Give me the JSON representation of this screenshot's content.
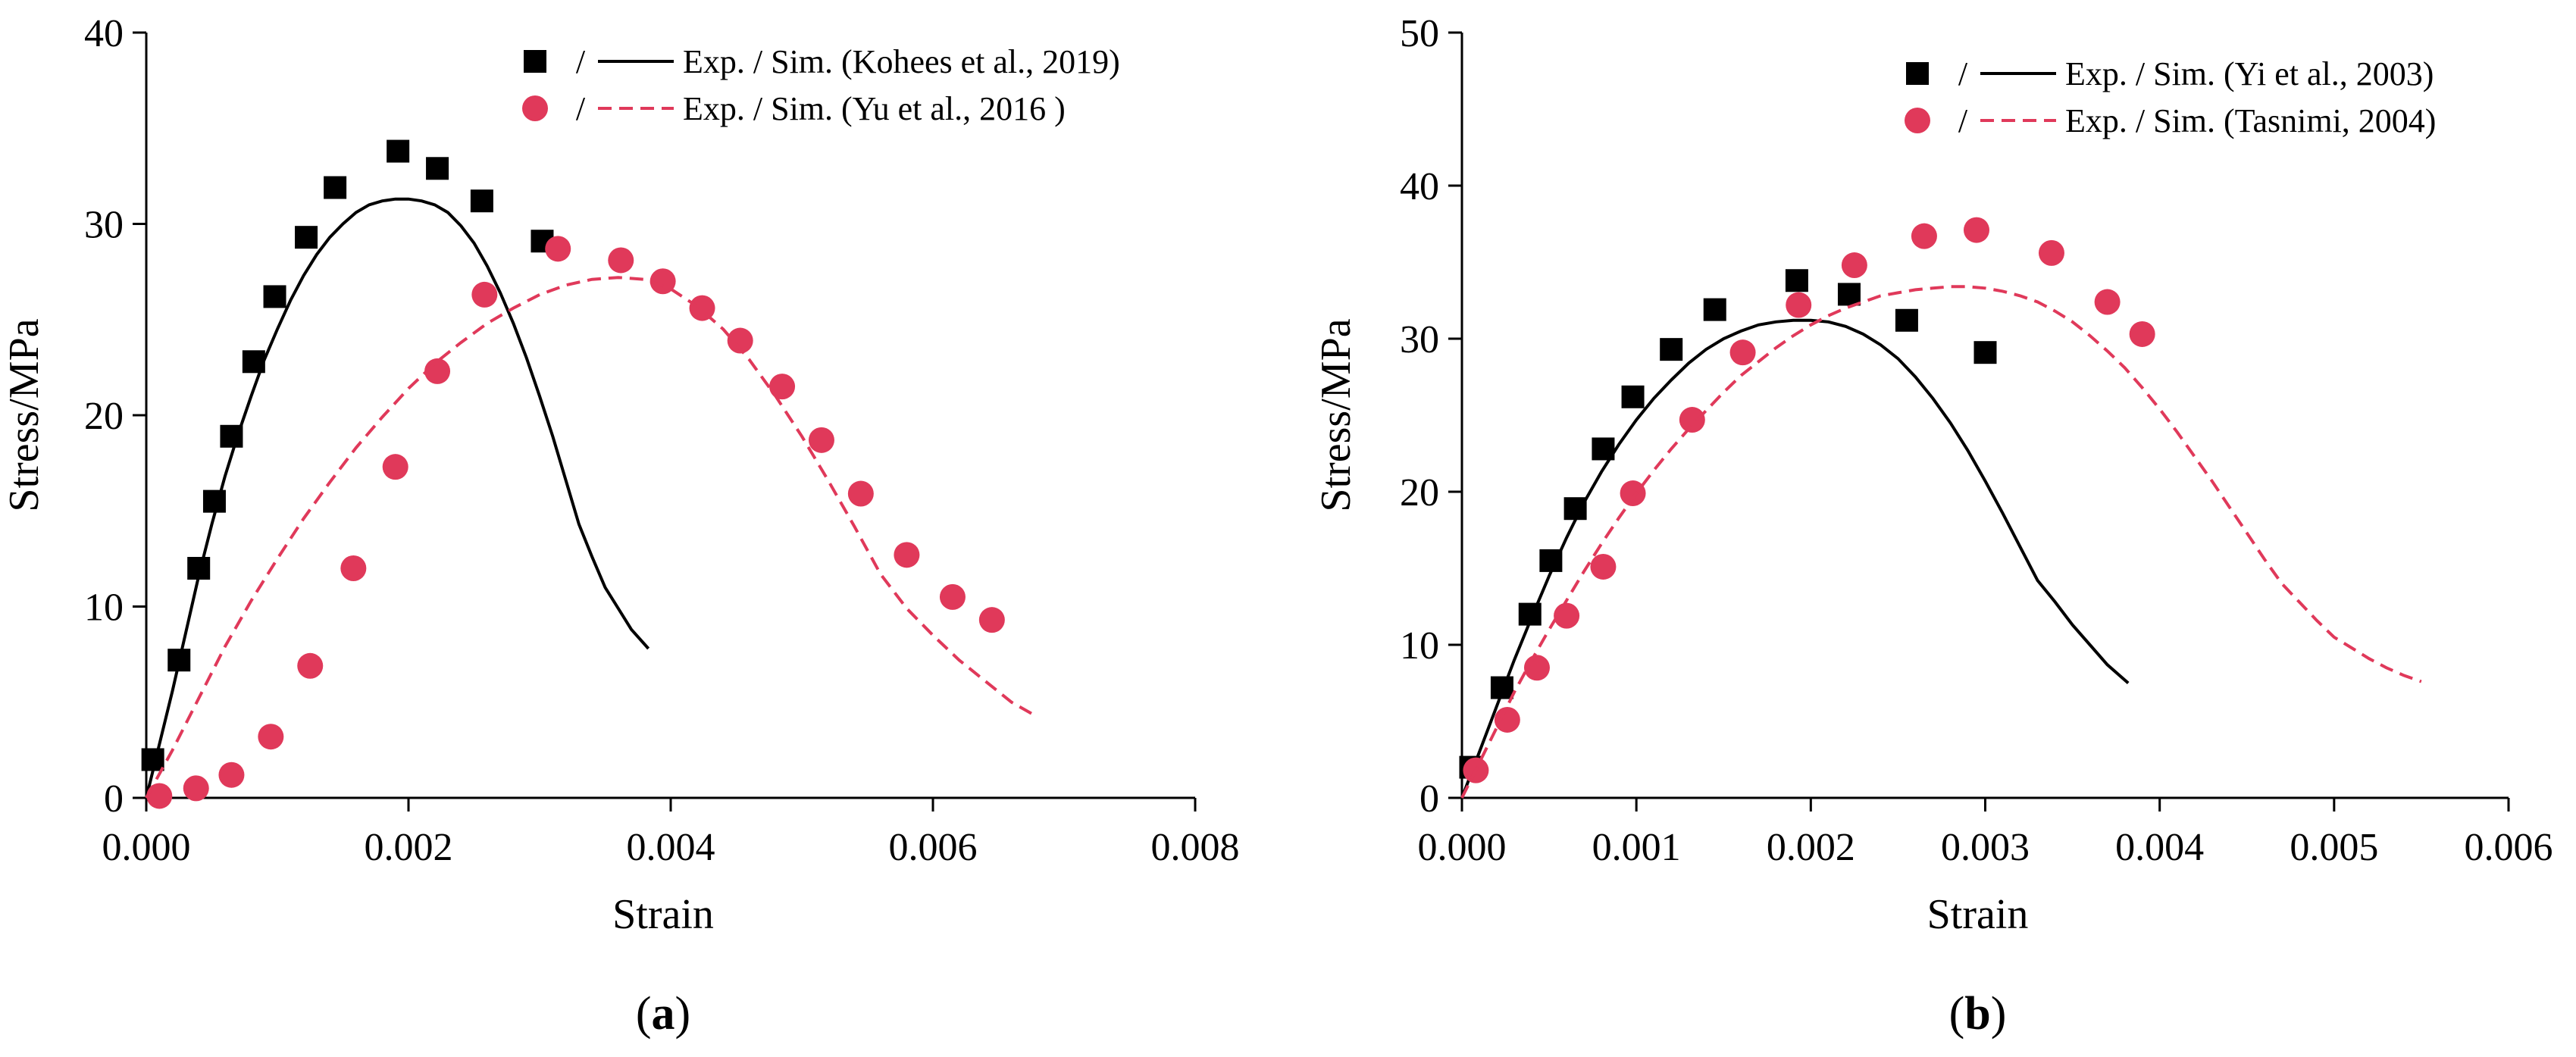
{
  "chart_data": [
    {
      "type": "scatter",
      "panel_label": "a",
      "xlabel": "Strain",
      "ylabel": "Stress/MPa",
      "xlim": [
        0,
        0.008
      ],
      "ylim": [
        0,
        40
      ],
      "xticks": [
        "0.000",
        "0.002",
        "0.004",
        "0.006",
        "0.008"
      ],
      "yticks": [
        "0",
        "10",
        "20",
        "30",
        "40"
      ],
      "legend_position": "top-right",
      "legend": [
        {
          "sep": "/",
          "label": "Exp. / Sim. (Kohees et al., 2019)"
        },
        {
          "sep": "/",
          "label": "Exp. / Sim. (Yu et al., 2016 )"
        }
      ],
      "series": [
        {
          "name": "Exp. (Kohees et al., 2019)",
          "kind": "marker",
          "marker": "square",
          "color": "#000000",
          "points": [
            [
              5e-05,
              2.0
            ],
            [
              0.00025,
              7.2
            ],
            [
              0.0004,
              12.0
            ],
            [
              0.00052,
              15.5
            ],
            [
              0.00065,
              18.9
            ],
            [
              0.00082,
              22.8
            ],
            [
              0.00098,
              26.2
            ],
            [
              0.00122,
              29.3
            ],
            [
              0.00144,
              31.9
            ],
            [
              0.00192,
              33.8
            ],
            [
              0.00222,
              32.9
            ],
            [
              0.00256,
              31.2
            ],
            [
              0.00302,
              29.1
            ]
          ]
        },
        {
          "name": "Sim. (Kohees et al., 2019)",
          "kind": "line",
          "style": "solid",
          "color": "#000000",
          "points": [
            [
              0.0,
              0.0
            ],
            [
              0.0001,
              2.8
            ],
            [
              0.0002,
              5.6
            ],
            [
              0.0003,
              8.6
            ],
            [
              0.0004,
              11.6
            ],
            [
              0.0005,
              14.3
            ],
            [
              0.0006,
              16.8
            ],
            [
              0.0007,
              19.0
            ],
            [
              0.0008,
              21.0
            ],
            [
              0.0009,
              22.9
            ],
            [
              0.001,
              24.5
            ],
            [
              0.0011,
              26.0
            ],
            [
              0.0012,
              27.3
            ],
            [
              0.0013,
              28.4
            ],
            [
              0.0014,
              29.3
            ],
            [
              0.0015,
              30.0
            ],
            [
              0.0016,
              30.6
            ],
            [
              0.0017,
              31.0
            ],
            [
              0.0018,
              31.2
            ],
            [
              0.0019,
              31.3
            ],
            [
              0.002,
              31.3
            ],
            [
              0.0021,
              31.2
            ],
            [
              0.0022,
              31.0
            ],
            [
              0.0023,
              30.6
            ],
            [
              0.0024,
              29.9
            ],
            [
              0.0025,
              29.0
            ],
            [
              0.0026,
              27.8
            ],
            [
              0.0027,
              26.4
            ],
            [
              0.0028,
              24.8
            ],
            [
              0.0029,
              23.0
            ],
            [
              0.003,
              21.0
            ],
            [
              0.0031,
              18.9
            ],
            [
              0.0032,
              16.6
            ],
            [
              0.0033,
              14.3
            ],
            [
              0.0034,
              12.6
            ],
            [
              0.0035,
              11.0
            ],
            [
              0.0036,
              9.9
            ],
            [
              0.0037,
              8.8
            ],
            [
              0.00383,
              7.8
            ]
          ]
        },
        {
          "name": "Exp. (Yu et al., 2016 )",
          "kind": "marker",
          "marker": "circle",
          "color": "#e0395a",
          "points": [
            [
              0.0001,
              0.1
            ],
            [
              0.00038,
              0.5
            ],
            [
              0.00065,
              1.2
            ],
            [
              0.00095,
              3.2
            ],
            [
              0.00125,
              6.9
            ],
            [
              0.00158,
              12.0
            ],
            [
              0.0019,
              17.3
            ],
            [
              0.00222,
              22.3
            ],
            [
              0.00258,
              26.3
            ],
            [
              0.00314,
              28.7
            ],
            [
              0.00362,
              28.1
            ],
            [
              0.00394,
              27.0
            ],
            [
              0.00424,
              25.6
            ],
            [
              0.00453,
              23.9
            ],
            [
              0.00485,
              21.5
            ],
            [
              0.00515,
              18.7
            ],
            [
              0.00545,
              15.9
            ],
            [
              0.0058,
              12.7
            ],
            [
              0.00615,
              10.5
            ],
            [
              0.00645,
              9.3
            ]
          ]
        },
        {
          "name": "Sim. (Yu et al., 2016 )",
          "kind": "line",
          "style": "dashed",
          "color": "#e0395a",
          "points": [
            [
              0.0,
              0.0
            ],
            [
              0.0002,
              2.5
            ],
            [
              0.0004,
              5.2
            ],
            [
              0.0006,
              7.9
            ],
            [
              0.0008,
              10.3
            ],
            [
              0.001,
              12.5
            ],
            [
              0.0012,
              14.6
            ],
            [
              0.0014,
              16.5
            ],
            [
              0.0016,
              18.3
            ],
            [
              0.0018,
              19.9
            ],
            [
              0.002,
              21.4
            ],
            [
              0.0022,
              22.7
            ],
            [
              0.0024,
              23.8
            ],
            [
              0.0026,
              24.8
            ],
            [
              0.0028,
              25.6
            ],
            [
              0.003,
              26.3
            ],
            [
              0.0032,
              26.8
            ],
            [
              0.0034,
              27.1
            ],
            [
              0.0036,
              27.2
            ],
            [
              0.0038,
              27.1
            ],
            [
              0.004,
              26.6
            ],
            [
              0.0042,
              25.7
            ],
            [
              0.0044,
              24.5
            ],
            [
              0.0046,
              22.9
            ],
            [
              0.0048,
              21.0
            ],
            [
              0.005,
              18.9
            ],
            [
              0.0052,
              16.6
            ],
            [
              0.0054,
              14.2
            ],
            [
              0.0056,
              11.7
            ],
            [
              0.0058,
              9.9
            ],
            [
              0.006,
              8.5
            ],
            [
              0.0062,
              7.2
            ],
            [
              0.0064,
              6.1
            ],
            [
              0.0066,
              5.0
            ],
            [
              0.00678,
              4.3
            ]
          ]
        }
      ]
    },
    {
      "type": "scatter",
      "panel_label": "b",
      "xlabel": "Strain",
      "ylabel": "Stress/MPa",
      "xlim": [
        0,
        0.006
      ],
      "ylim": [
        0,
        50
      ],
      "xticks": [
        "0.000",
        "0.001",
        "0.002",
        "0.003",
        "0.004",
        "0.005",
        "0.006"
      ],
      "yticks": [
        "0",
        "10",
        "20",
        "30",
        "40",
        "50"
      ],
      "legend_position": "top-right",
      "legend": [
        {
          "sep": "/",
          "label": "Exp. / Sim. (Yi et al., 2003)"
        },
        {
          "sep": "/",
          "label": "Exp. / Sim. (Tasnimi, 2004)"
        }
      ],
      "series": [
        {
          "name": "Exp. (Yi et al., 2003)",
          "kind": "marker",
          "marker": "square",
          "color": "#000000",
          "points": [
            [
              5e-05,
              2.0
            ],
            [
              0.00023,
              7.2
            ],
            [
              0.00039,
              12.0
            ],
            [
              0.00051,
              15.5
            ],
            [
              0.00065,
              18.9
            ],
            [
              0.00081,
              22.8
            ],
            [
              0.00098,
              26.2
            ],
            [
              0.0012,
              29.3
            ],
            [
              0.00145,
              31.9
            ],
            [
              0.00192,
              33.8
            ],
            [
              0.00222,
              32.9
            ],
            [
              0.00255,
              31.2
            ],
            [
              0.003,
              29.1
            ]
          ]
        },
        {
          "name": "Sim. (Yi et al., 2003)",
          "kind": "line",
          "style": "solid",
          "color": "#000000",
          "points": [
            [
              0.0,
              0.0
            ],
            [
              0.0001,
              3.0
            ],
            [
              0.0002,
              6.0
            ],
            [
              0.0003,
              9.0
            ],
            [
              0.0004,
              11.8
            ],
            [
              0.0005,
              14.5
            ],
            [
              0.0006,
              17.0
            ],
            [
              0.0007,
              19.3
            ],
            [
              0.0008,
              21.3
            ],
            [
              0.0009,
              23.1
            ],
            [
              0.001,
              24.7
            ],
            [
              0.0011,
              26.1
            ],
            [
              0.0012,
              27.3
            ],
            [
              0.0013,
              28.4
            ],
            [
              0.0014,
              29.3
            ],
            [
              0.0015,
              30.0
            ],
            [
              0.0016,
              30.5
            ],
            [
              0.0017,
              30.9
            ],
            [
              0.0018,
              31.1
            ],
            [
              0.0019,
              31.2
            ],
            [
              0.002,
              31.2
            ],
            [
              0.0021,
              31.1
            ],
            [
              0.0022,
              30.8
            ],
            [
              0.0023,
              30.3
            ],
            [
              0.0024,
              29.6
            ],
            [
              0.0025,
              28.7
            ],
            [
              0.0026,
              27.5
            ],
            [
              0.0027,
              26.1
            ],
            [
              0.0028,
              24.5
            ],
            [
              0.0029,
              22.7
            ],
            [
              0.003,
              20.7
            ],
            [
              0.0031,
              18.6
            ],
            [
              0.0032,
              16.4
            ],
            [
              0.0033,
              14.2
            ],
            [
              0.0034,
              12.8
            ],
            [
              0.0035,
              11.3
            ],
            [
              0.0036,
              10.0
            ],
            [
              0.0037,
              8.7
            ],
            [
              0.00382,
              7.5
            ]
          ]
        },
        {
          "name": "Exp. (Tasnimi, 2004)",
          "kind": "marker",
          "marker": "circle",
          "color": "#e0395a",
          "points": [
            [
              8e-05,
              1.8
            ],
            [
              0.00026,
              5.1
            ],
            [
              0.00043,
              8.5
            ],
            [
              0.0006,
              11.9
            ],
            [
              0.00081,
              15.1
            ],
            [
              0.00098,
              19.9
            ],
            [
              0.00132,
              24.7
            ],
            [
              0.00161,
              29.1
            ],
            [
              0.00193,
              32.2
            ],
            [
              0.00225,
              34.8
            ],
            [
              0.00265,
              36.7
            ],
            [
              0.00295,
              37.1
            ],
            [
              0.00338,
              35.6
            ],
            [
              0.0037,
              32.4
            ],
            [
              0.0039,
              30.3
            ]
          ]
        },
        {
          "name": "Sim. (Tasnimi, 2004)",
          "kind": "line",
          "style": "dashed",
          "color": "#e0395a",
          "points": [
            [
              0.0,
              0.0
            ],
            [
              0.0001,
              2.3
            ],
            [
              0.0002,
              4.6
            ],
            [
              0.0003,
              6.9
            ],
            [
              0.0004,
              9.0
            ],
            [
              0.0005,
              11.0
            ],
            [
              0.0006,
              12.9
            ],
            [
              0.0007,
              14.8
            ],
            [
              0.0008,
              16.6
            ],
            [
              0.0009,
              18.3
            ],
            [
              0.001,
              19.9
            ],
            [
              0.0011,
              21.4
            ],
            [
              0.0012,
              22.8
            ],
            [
              0.0013,
              24.1
            ],
            [
              0.0014,
              25.3
            ],
            [
              0.0015,
              26.5
            ],
            [
              0.0016,
              27.6
            ],
            [
              0.0017,
              28.5
            ],
            [
              0.0018,
              29.4
            ],
            [
              0.0019,
              30.2
            ],
            [
              0.002,
              30.9
            ],
            [
              0.0021,
              31.5
            ],
            [
              0.0022,
              32.0
            ],
            [
              0.0023,
              32.4
            ],
            [
              0.0024,
              32.8
            ],
            [
              0.0025,
              33.0
            ],
            [
              0.0026,
              33.2
            ],
            [
              0.0027,
              33.3
            ],
            [
              0.0028,
              33.4
            ],
            [
              0.0029,
              33.4
            ],
            [
              0.003,
              33.3
            ],
            [
              0.0031,
              33.1
            ],
            [
              0.0032,
              32.8
            ],
            [
              0.0033,
              32.4
            ],
            [
              0.0034,
              31.8
            ],
            [
              0.0035,
              31.1
            ],
            [
              0.0036,
              30.2
            ],
            [
              0.0037,
              29.2
            ],
            [
              0.0038,
              28.1
            ],
            [
              0.0039,
              26.8
            ],
            [
              0.004,
              25.4
            ],
            [
              0.0041,
              23.9
            ],
            [
              0.0042,
              22.3
            ],
            [
              0.0043,
              20.7
            ],
            [
              0.0044,
              19.0
            ],
            [
              0.0045,
              17.3
            ],
            [
              0.0046,
              15.6
            ],
            [
              0.0047,
              14.0
            ],
            [
              0.0048,
              12.8
            ],
            [
              0.0049,
              11.6
            ],
            [
              0.005,
              10.5
            ],
            [
              0.0051,
              9.8
            ],
            [
              0.0052,
              9.1
            ],
            [
              0.0053,
              8.5
            ],
            [
              0.0054,
              8.0
            ],
            [
              0.0055,
              7.6
            ]
          ]
        }
      ]
    }
  ]
}
